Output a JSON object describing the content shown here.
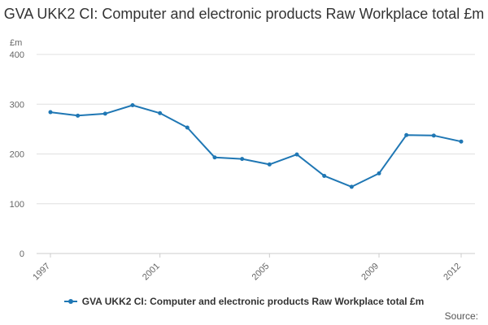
{
  "chart_data": {
    "type": "line",
    "title": "GVA UKK2 CI: Computer and electronic products Raw Workplace total £m",
    "ylabel": "£m",
    "xlabel": "",
    "ylim": [
      0,
      400
    ],
    "yticks": [
      0,
      100,
      200,
      300,
      400
    ],
    "xticks": [
      "1997",
      "2001",
      "2005",
      "2009",
      "2012"
    ],
    "x": [
      1997,
      1998,
      1999,
      2000,
      2001,
      2002,
      2003,
      2004,
      2005,
      2006,
      2007,
      2008,
      2009,
      2010,
      2011,
      2012
    ],
    "series": [
      {
        "name": "GVA UKK2 CI: Computer and electronic products Raw Workplace total £m",
        "values": [
          284,
          277,
          281,
          298,
          282,
          253,
          193,
          190,
          179,
          199,
          156,
          134,
          161,
          238,
          237,
          225
        ],
        "color": "#1f77b4"
      }
    ],
    "grid": true,
    "legend": "bottom-center"
  },
  "source": {
    "label": "Source:"
  }
}
